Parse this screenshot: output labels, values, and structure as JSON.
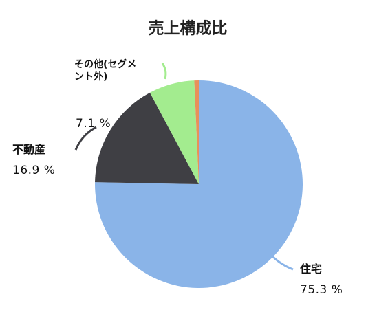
{
  "chart_data": {
    "type": "pie",
    "title": "売上構成比",
    "categories": [
      "住宅",
      "不動産",
      "その他(セグメント外)",
      null
    ],
    "values": [
      75.3,
      16.9,
      7.1,
      0.7
    ],
    "value_labels": [
      "75.3 %",
      "16.9 %",
      "7.1 %",
      null
    ],
    "colors": [
      "#8ab4e8",
      "#3f3f44",
      "#a3ec8f",
      "#e8905a"
    ]
  }
}
